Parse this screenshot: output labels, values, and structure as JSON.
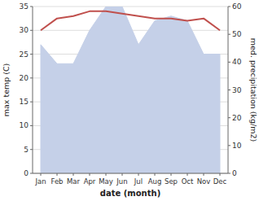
{
  "chart_data": {
    "type": "line",
    "categories": [
      "Jan",
      "Feb",
      "Mar",
      "Apr",
      "May",
      "Jun",
      "Jul",
      "Aug",
      "Sep",
      "Oct",
      "Nov",
      "Dec"
    ],
    "series": [
      {
        "type": "area",
        "color": "#c5d0e8",
        "values": [
          27,
          23,
          23,
          30,
          35,
          35,
          27,
          32,
          33,
          32,
          25,
          25
        ]
      },
      {
        "type": "line",
        "color": "#c0504d",
        "values": [
          30.0,
          32.5,
          33.0,
          34.0,
          34.0,
          33.5,
          33.0,
          32.5,
          32.5,
          32.0,
          32.5,
          30.0
        ]
      }
    ],
    "ylim": [
      0,
      35
    ],
    "yticks": [
      0,
      5,
      10,
      15,
      20,
      25,
      30,
      35
    ],
    "y2lim": [
      0,
      60
    ],
    "y2ticks": [
      0,
      10,
      20,
      30,
      40,
      50,
      60
    ],
    "ylabel": "max temp (C)",
    "y2label": "med. precipitation (kg/m2)",
    "xlabel": "date (month)",
    "grid": true
  }
}
